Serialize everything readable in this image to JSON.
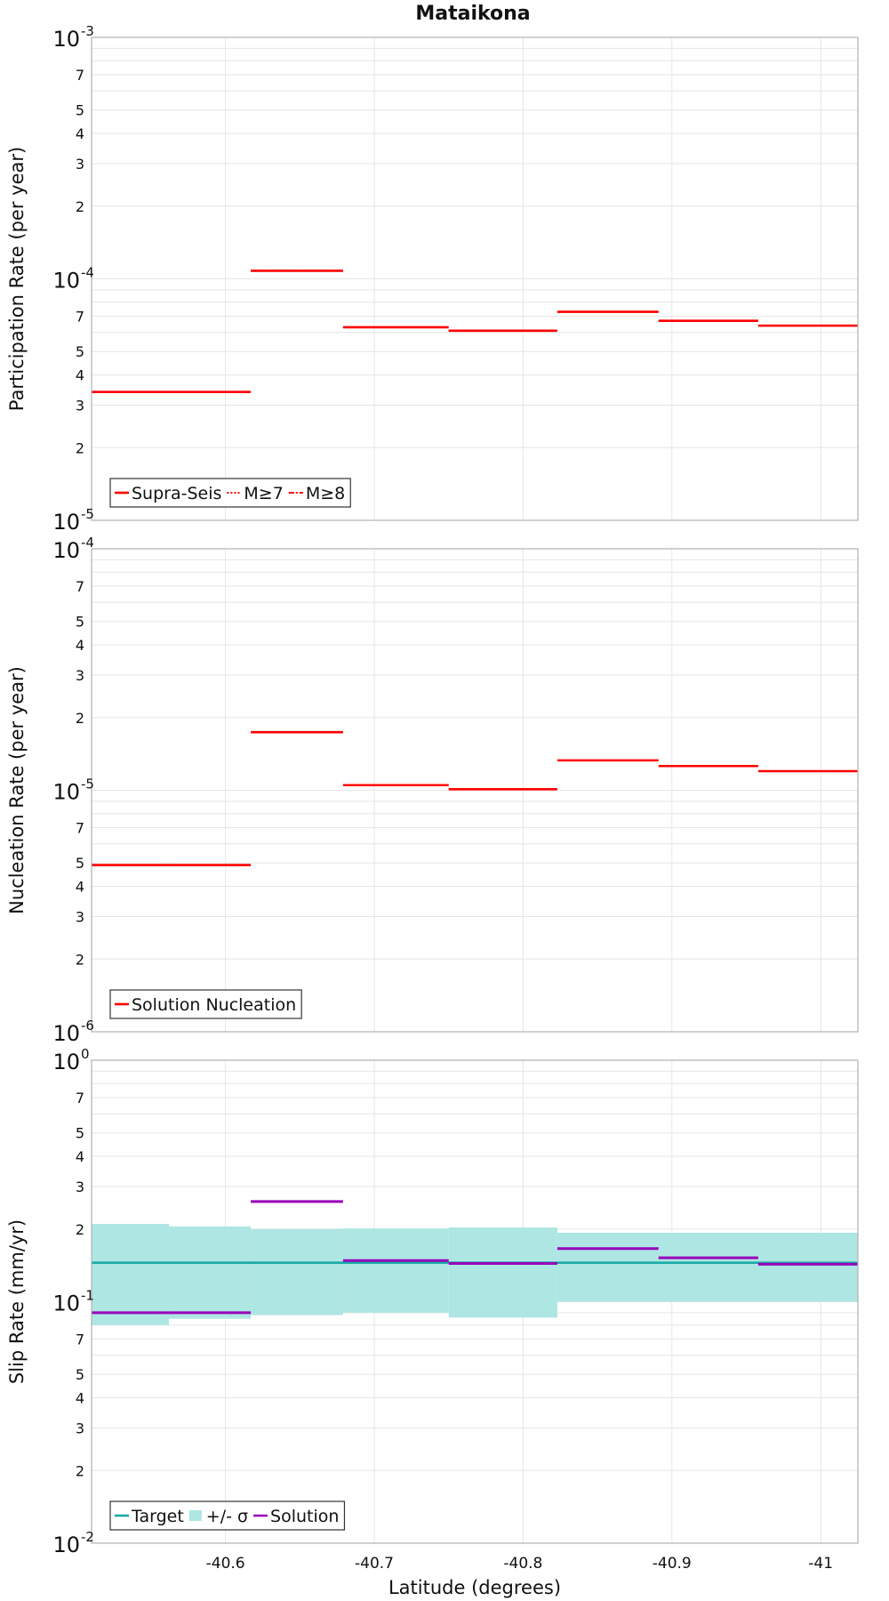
{
  "figure": {
    "title": "Mataikona",
    "xlabel": "Latitude (degrees)",
    "x_ticks": [
      "-40.6",
      "-40.7",
      "-40.8",
      "-40.9",
      "-41"
    ],
    "colors": {
      "red": "#ff0000",
      "target": "#1aaaa8",
      "sigma": "#aee6e3",
      "solution": "#9900bb",
      "grid": "#e6e6e6",
      "frame": "#b0b0b0"
    }
  },
  "chart_data": [
    {
      "type": "line",
      "ylabel": "Participation Rate (per year)",
      "yscale": "log",
      "ylim": [
        1e-05,
        0.001
      ],
      "xlim": [
        -40.51,
        -41.025
      ],
      "legend_position": "bottom-left",
      "legend": [
        "Supra-Seis",
        "M≥7",
        "M≥8"
      ],
      "series": [
        {
          "name": "Supra-Seis",
          "segments": [
            [
              -40.51,
              -40.562,
              3.4e-05
            ],
            [
              -40.562,
              -40.617,
              3.4e-05
            ],
            [
              -40.617,
              -40.679,
              0.000108
            ],
            [
              -40.679,
              -40.75,
              6.3e-05
            ],
            [
              -40.75,
              -40.823,
              6.1e-05
            ],
            [
              -40.823,
              -40.891,
              7.3e-05
            ],
            [
              -40.891,
              -40.958,
              6.7e-05
            ],
            [
              -40.958,
              -41.025,
              6.4e-05
            ]
          ]
        },
        {
          "name": "M≥7",
          "segments": [
            [
              -40.51,
              -40.562,
              3.4e-05
            ],
            [
              -40.562,
              -40.617,
              3.4e-05
            ],
            [
              -40.617,
              -40.679,
              0.000108
            ],
            [
              -40.679,
              -40.75,
              6.3e-05
            ],
            [
              -40.75,
              -40.823,
              6.1e-05
            ],
            [
              -40.823,
              -40.891,
              7.3e-05
            ],
            [
              -40.891,
              -40.958,
              6.7e-05
            ],
            [
              -40.958,
              -41.025,
              6.4e-05
            ]
          ]
        },
        {
          "name": "M≥8",
          "segments": []
        }
      ]
    },
    {
      "type": "line",
      "ylabel": "Nucleation Rate (per year)",
      "yscale": "log",
      "ylim": [
        1e-06,
        0.0001
      ],
      "xlim": [
        -40.51,
        -41.025
      ],
      "legend_position": "bottom-left",
      "legend": [
        "Solution Nucleation"
      ],
      "series": [
        {
          "name": "Solution Nucleation",
          "segments": [
            [
              -40.51,
              -40.562,
              4.9e-06
            ],
            [
              -40.562,
              -40.617,
              4.9e-06
            ],
            [
              -40.617,
              -40.679,
              1.74e-05
            ],
            [
              -40.679,
              -40.75,
              1.05e-05
            ],
            [
              -40.75,
              -40.823,
              1.01e-05
            ],
            [
              -40.823,
              -40.891,
              1.33e-05
            ],
            [
              -40.891,
              -40.958,
              1.26e-05
            ],
            [
              -40.958,
              -41.025,
              1.2e-05
            ]
          ]
        }
      ]
    },
    {
      "type": "line",
      "ylabel": "Slip Rate (mm/yr)",
      "yscale": "log",
      "ylim": [
        0.01,
        1
      ],
      "xlim": [
        -40.51,
        -41.025
      ],
      "legend_position": "bottom-left",
      "legend": [
        "Target",
        "+/- σ",
        "Solution"
      ],
      "series": [
        {
          "name": "Target",
          "segments": [
            [
              -40.51,
              -41.025,
              0.145
            ]
          ]
        },
        {
          "name": "+/- σ",
          "bands": [
            [
              -40.51,
              -40.562,
              0.08,
              0.21
            ],
            [
              -40.562,
              -40.617,
              0.085,
              0.205
            ],
            [
              -40.617,
              -40.679,
              0.088,
              0.2
            ],
            [
              -40.679,
              -40.75,
              0.09,
              0.201
            ],
            [
              -40.75,
              -40.823,
              0.086,
              0.203
            ],
            [
              -40.823,
              -41.025,
              0.1,
              0.193
            ]
          ]
        },
        {
          "name": "Solution",
          "segments": [
            [
              -40.51,
              -40.562,
              0.09
            ],
            [
              -40.562,
              -40.617,
              0.09
            ],
            [
              -40.617,
              -40.679,
              0.26
            ],
            [
              -40.679,
              -40.75,
              0.148
            ],
            [
              -40.75,
              -40.823,
              0.144
            ],
            [
              -40.823,
              -40.891,
              0.166
            ],
            [
              -40.891,
              -40.958,
              0.152
            ],
            [
              -40.958,
              -41.025,
              0.143
            ]
          ]
        }
      ]
    }
  ]
}
